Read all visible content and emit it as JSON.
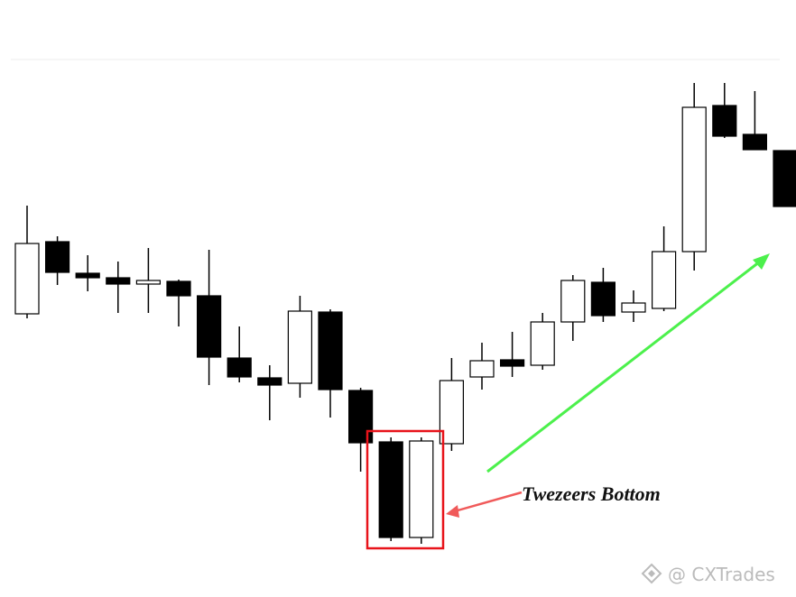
{
  "chart_data": {
    "type": "candlestick",
    "annotation": "Twezeers Bottom",
    "watermark": "@ CXTrades",
    "ylim": [
      0,
      662
    ],
    "up_color": "#ffffff",
    "down_color": "#000000",
    "open": [
      314,
      394,
      359,
      354,
      347,
      350,
      334,
      265,
      243,
      237,
      316,
      229,
      172,
      66,
      170,
      244,
      263,
      257,
      305,
      349,
      316,
      320,
      383,
      545,
      513,
      495
    ],
    "high": [
      434,
      400,
      379,
      372,
      387,
      352,
      385,
      300,
      257,
      334,
      319,
      232,
      177,
      177,
      265,
      282,
      294,
      315,
      357,
      365,
      340,
      411,
      570,
      570,
      561,
      495
    ],
    "low": [
      309,
      346,
      339,
      315,
      315,
      300,
      235,
      238,
      196,
      221,
      199,
      139,
      62,
      59,
      162,
      230,
      244,
      252,
      284,
      305,
      305,
      317,
      362,
      509,
      496,
      433
    ],
    "close": [
      392,
      360,
      354,
      347,
      351,
      334,
      266,
      244,
      235,
      317,
      230,
      171,
      66,
      173,
      240,
      262,
      256,
      305,
      351,
      312,
      326,
      383,
      543,
      511,
      496,
      433
    ]
  }
}
